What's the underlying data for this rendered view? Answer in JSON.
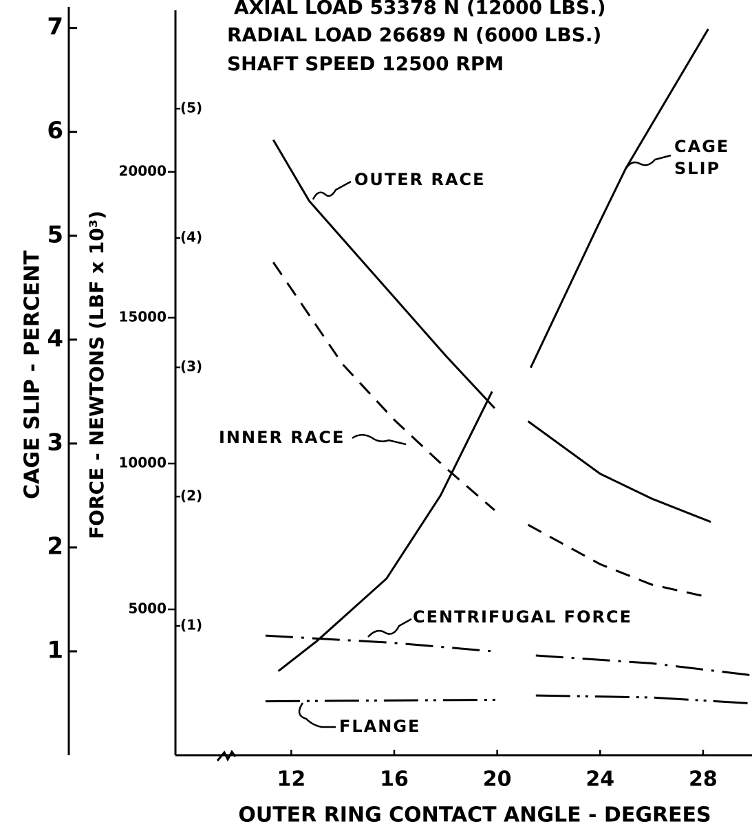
{
  "chart_data": {
    "type": "line",
    "subtitle": [
      "AXIAL LOAD 53378 N  (12000 LBS.)",
      "RADIAL LOAD 26689 N  (6000 LBS.)",
      "SHAFT SPEED  12500 RPM"
    ],
    "ylabel": "CAGE SLIP - PERCENT",
    "y2label": "FORCE - NEWTONS (LBF x 10³)",
    "xlabel": "OUTER RING CONTACT ANGLE - DEGREES",
    "xlim": [
      7.5,
      29.9
    ],
    "xticks": [
      12,
      16,
      20,
      24,
      28
    ],
    "ylim": [
      0,
      7.15
    ],
    "yticks": [
      1,
      2,
      3,
      4,
      5,
      6,
      7
    ],
    "y2lim": [
      0,
      25470
    ],
    "y2ticks": [
      5000,
      10000,
      15000,
      20000
    ],
    "lbf_lim": [
      0,
      5.745
    ],
    "lbf_ticks": [
      {
        "value": 1,
        "label": "(1)"
      },
      {
        "value": 2,
        "label": "(2)"
      },
      {
        "value": 3,
        "label": "(3)"
      },
      {
        "value": 4,
        "label": "(4)"
      },
      {
        "value": 5,
        "label": "(5)"
      }
    ],
    "series": [
      {
        "name": "OUTER RACE",
        "color": "#000000",
        "style": "solid",
        "axis": "y2",
        "x": [
          11.3,
          12.7,
          14,
          16,
          18,
          19.9,
          20.6,
          21.2,
          24,
          26,
          28.3
        ],
        "values": [
          21100,
          19000,
          17700,
          15700,
          13700,
          11900,
          null,
          11450,
          9650,
          8800,
          8000
        ]
      },
      {
        "name": "INNER RACE",
        "color": "#000000",
        "style": "dashed",
        "axis": "y2",
        "x": [
          11.3,
          14,
          16,
          18,
          19.9,
          20.6,
          21.2,
          24,
          26,
          28.3
        ],
        "values": [
          16900,
          13400,
          11500,
          9850,
          8400,
          null,
          7900,
          6550,
          5850,
          5400
        ]
      },
      {
        "name": "CENTRIFUGAL FORCE",
        "color": "#000000",
        "style": "dashdot",
        "axis": "y2",
        "x": [
          11,
          16,
          20,
          20.8,
          21.5,
          26,
          29.8
        ],
        "values": [
          4100,
          3850,
          3550,
          null,
          3420,
          3150,
          2750
        ]
      },
      {
        "name": "FLANGE",
        "color": "#000000",
        "style": "dashdotdot",
        "axis": "y2",
        "x": [
          11,
          20,
          20.8,
          21.5,
          26,
          29.8
        ],
        "values": [
          1850,
          1900,
          null,
          2050,
          1980,
          1780
        ]
      },
      {
        "name": "CAGE SLIP",
        "color": "#000000",
        "style": "solid",
        "axis": "y",
        "x": [
          11.5,
          13,
          15.7,
          17.8,
          19.8,
          20.6,
          21.3,
          23.9,
          25,
          28.2
        ],
        "values": [
          0.81,
          1.1,
          1.7,
          2.5,
          3.5,
          null,
          3.73,
          5.09,
          5.65,
          6.99
        ]
      }
    ]
  }
}
